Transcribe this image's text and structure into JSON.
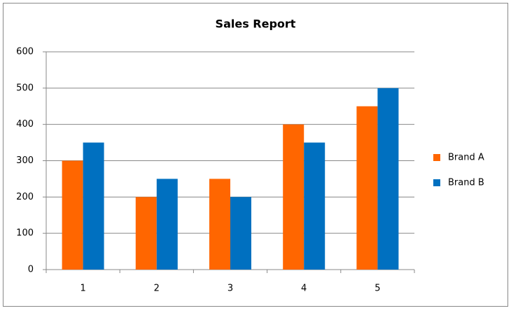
{
  "chart_data": {
    "type": "bar",
    "title": "Sales Report",
    "categories": [
      "1",
      "2",
      "3",
      "4",
      "5"
    ],
    "series": [
      {
        "name": "Brand A",
        "color": "#ff6600",
        "values": [
          300,
          200,
          250,
          400,
          450
        ]
      },
      {
        "name": "Brand B",
        "color": "#0070c0",
        "values": [
          350,
          250,
          200,
          350,
          500
        ]
      }
    ],
    "ylim": [
      0,
      600
    ],
    "yticks": [
      0,
      100,
      200,
      300,
      400,
      500,
      600
    ],
    "grid": true,
    "legend": "right"
  }
}
